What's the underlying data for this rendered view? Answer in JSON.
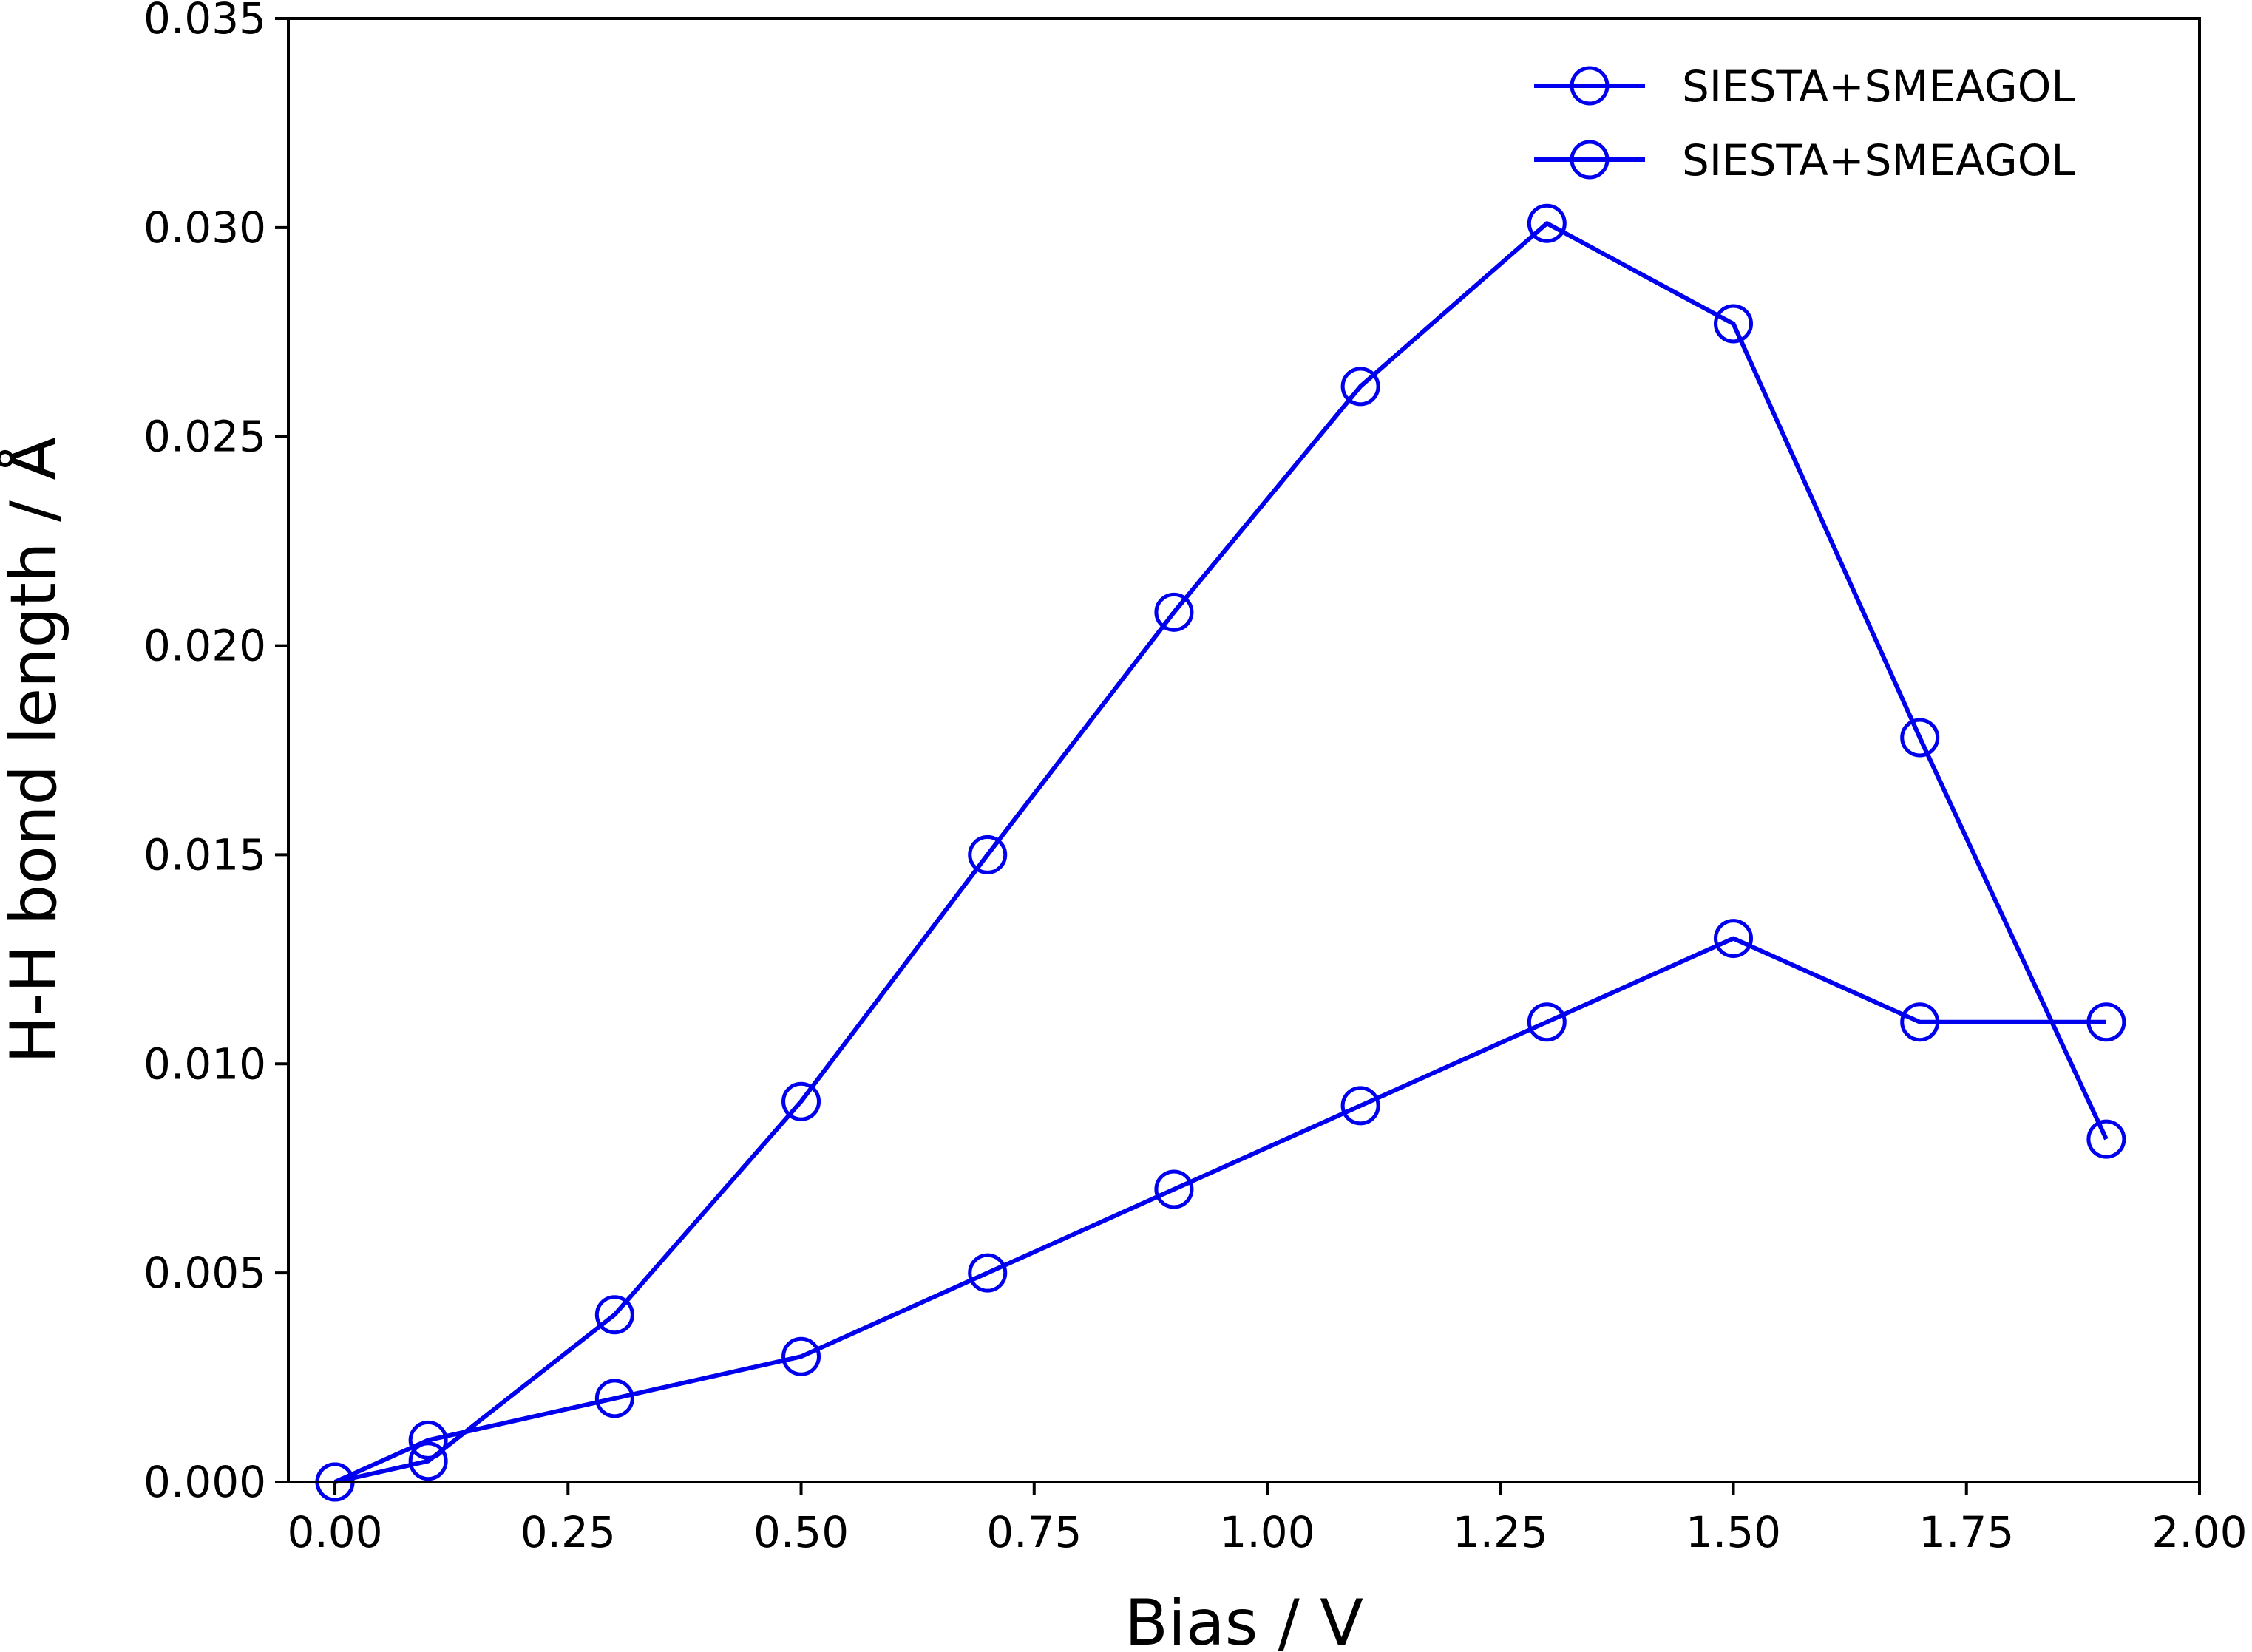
{
  "chart_data": {
    "type": "line",
    "xlabel": "Bias / V",
    "ylabel": "H-H bond length / Å",
    "xlim": [
      -0.05,
      2.0
    ],
    "ylim": [
      0.0,
      0.035
    ],
    "xticks": [
      "0.00",
      "0.25",
      "0.50",
      "0.75",
      "1.00",
      "1.25",
      "1.50",
      "1.75",
      "2.00"
    ],
    "yticks": [
      "0.000",
      "0.005",
      "0.010",
      "0.015",
      "0.020",
      "0.025",
      "0.030",
      "0.035"
    ],
    "legend_position": "top-right",
    "grid": false,
    "series": [
      {
        "name": "SIESTA+SMEAGOL",
        "color": "#0000ee",
        "marker": "open-circle",
        "x": [
          0.0,
          0.1,
          0.3,
          0.5,
          0.7,
          0.9,
          1.1,
          1.3,
          1.5,
          1.7,
          1.9
        ],
        "y": [
          0.0,
          0.0005,
          0.004,
          0.0091,
          0.015,
          0.0208,
          0.0262,
          0.0301,
          0.0277,
          0.0178,
          0.0082
        ]
      },
      {
        "name": "SIESTA+SMEAGOL",
        "color": "#0000ee",
        "marker": "open-circle",
        "x": [
          0.0,
          0.1,
          0.3,
          0.5,
          0.7,
          0.9,
          1.1,
          1.3,
          1.5,
          1.7,
          1.9
        ],
        "y": [
          0.0,
          0.001,
          0.002,
          0.003,
          0.005,
          0.007,
          0.009,
          0.011,
          0.013,
          0.011,
          0.011
        ]
      }
    ]
  }
}
